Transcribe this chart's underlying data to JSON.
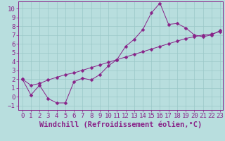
{
  "title": "",
  "xlabel": "Windchill (Refroidissement éolien,°C)",
  "ylabel": "",
  "xlim": [
    -0.5,
    23.3
  ],
  "ylim": [
    -1.5,
    10.8
  ],
  "xticks": [
    0,
    1,
    2,
    3,
    4,
    5,
    6,
    7,
    8,
    9,
    10,
    11,
    12,
    13,
    14,
    15,
    16,
    17,
    18,
    19,
    20,
    21,
    22,
    23
  ],
  "yticks": [
    -1,
    0,
    1,
    2,
    3,
    4,
    5,
    6,
    7,
    8,
    9,
    10
  ],
  "background_color": "#b8dede",
  "grid_color": "#9ac8c8",
  "line_color": "#882288",
  "line1_x": [
    0,
    1,
    2,
    3,
    4,
    5,
    6,
    7,
    8,
    9,
    10,
    11,
    12,
    13,
    14,
    15,
    16,
    17,
    18,
    19,
    20,
    21,
    22,
    23
  ],
  "line1_y": [
    2.0,
    0.2,
    1.3,
    -0.2,
    -0.7,
    -0.7,
    1.7,
    2.1,
    1.9,
    2.5,
    3.5,
    4.2,
    5.7,
    6.5,
    7.6,
    9.5,
    10.6,
    8.2,
    8.3,
    7.8,
    7.0,
    6.8,
    7.0,
    7.5
  ],
  "line2_x": [
    0,
    1,
    2,
    3,
    4,
    5,
    6,
    7,
    8,
    9,
    10,
    11,
    12,
    13,
    14,
    15,
    16,
    17,
    18,
    19,
    20,
    21,
    22,
    23
  ],
  "line2_y": [
    2.0,
    1.3,
    1.5,
    1.9,
    2.2,
    2.5,
    2.7,
    3.0,
    3.3,
    3.6,
    3.9,
    4.2,
    4.5,
    4.8,
    5.1,
    5.4,
    5.7,
    6.0,
    6.3,
    6.6,
    6.8,
    7.0,
    7.1,
    7.4
  ],
  "font_color": "#882288",
  "tick_fontsize": 6.5,
  "xlabel_fontsize": 7.5,
  "marker": "D",
  "marker_size": 2.5,
  "linewidth": 0.7
}
